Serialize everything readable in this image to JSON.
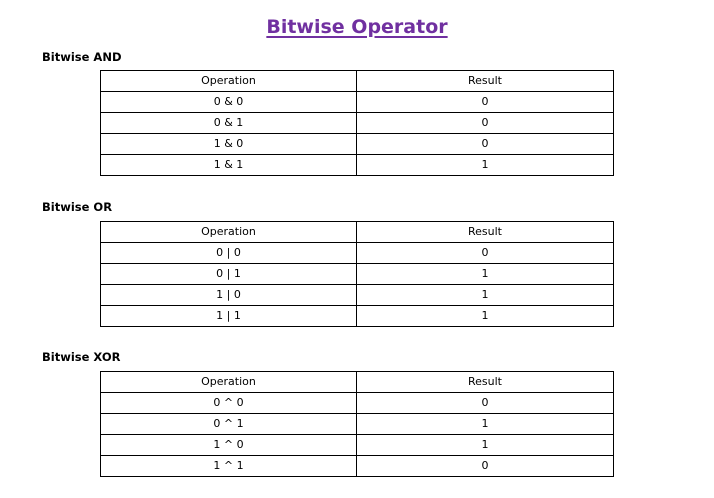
{
  "title": "Bitwise Operator",
  "colors": {
    "title": "#7030a0",
    "text": "#000000",
    "border": "#000000"
  },
  "sections": [
    {
      "heading": "Bitwise AND",
      "columns": [
        "Operation",
        "Result"
      ],
      "rows": [
        {
          "operation": "0 & 0",
          "result": "0"
        },
        {
          "operation": "0 & 1",
          "result": "0"
        },
        {
          "operation": "1 & 0",
          "result": "0"
        },
        {
          "operation": "1 & 1",
          "result": "1"
        }
      ]
    },
    {
      "heading": "Bitwise OR",
      "columns": [
        "Operation",
        "Result"
      ],
      "rows": [
        {
          "operation": "0 | 0",
          "result": "0"
        },
        {
          "operation": "0 | 1",
          "result": "1"
        },
        {
          "operation": "1 | 0",
          "result": "1"
        },
        {
          "operation": "1 | 1",
          "result": "1"
        }
      ]
    },
    {
      "heading": "Bitwise XOR",
      "columns": [
        "Operation",
        "Result"
      ],
      "rows": [
        {
          "operation": "0 ^ 0",
          "result": "0"
        },
        {
          "operation": "0 ^ 1",
          "result": "1"
        },
        {
          "operation": "1 ^ 0",
          "result": "1"
        },
        {
          "operation": "1 ^ 1",
          "result": "0"
        }
      ]
    }
  ]
}
